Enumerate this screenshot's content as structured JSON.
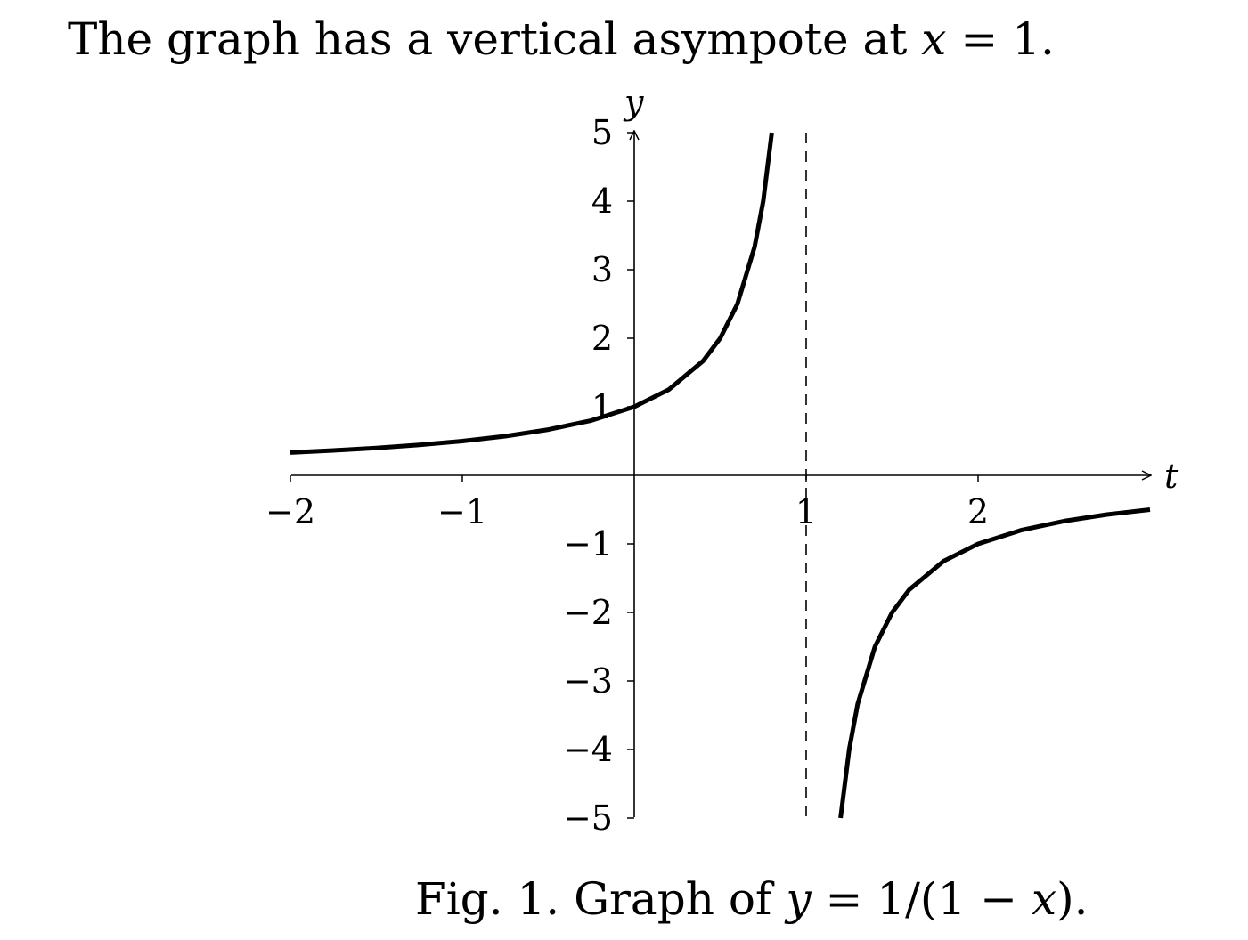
{
  "heading": {
    "prefix": "The graph has a vertical asympote at ",
    "var": "x",
    "equation_rest": " = 1."
  },
  "caption": {
    "prefix": "Fig. 1. Graph of ",
    "var_y": "y",
    "middle": " = 1/(1 − ",
    "var_x": "x",
    "suffix": ")."
  },
  "chart_data": {
    "type": "line",
    "function": "y = 1/(1 - x)",
    "xlabel": "t",
    "ylabel": "y",
    "xlim": [
      -2,
      3
    ],
    "ylim": [
      -5,
      5
    ],
    "xticks": [
      -2,
      -1,
      1,
      2
    ],
    "xtick_labels": [
      "−2",
      "−1",
      "1",
      "2"
    ],
    "yticks": [
      -5,
      -4,
      -3,
      -2,
      -1,
      1,
      2,
      3,
      4,
      5
    ],
    "ytick_labels": [
      "−5",
      "−4",
      "−3",
      "−2",
      "−1",
      "1",
      "2",
      "3",
      "4",
      "5"
    ],
    "asymptote_x": 1,
    "asymptote_style": "dashed",
    "grid": false,
    "series": [
      {
        "x": [
          -2,
          -1.75,
          -1.5,
          -1.25,
          -1,
          -0.75,
          -0.5,
          -0.25,
          0,
          0.2,
          0.4,
          0.5,
          0.6,
          0.7,
          0.75,
          0.8
        ],
        "y": [
          0.333,
          0.364,
          0.4,
          0.444,
          0.5,
          0.571,
          0.667,
          0.8,
          1,
          1.25,
          1.667,
          2,
          2.5,
          3.333,
          4,
          5
        ]
      },
      {
        "x": [
          1.2,
          1.25,
          1.3,
          1.4,
          1.5,
          1.6,
          1.8,
          2,
          2.25,
          2.5,
          2.75,
          3
        ],
        "y": [
          -5,
          -4,
          -3.333,
          -2.5,
          -2,
          -1.667,
          -1.25,
          -1,
          -0.8,
          -0.667,
          -0.571,
          -0.5
        ]
      }
    ],
    "colors": {
      "curve": "#000000",
      "axes": "#000000"
    }
  }
}
